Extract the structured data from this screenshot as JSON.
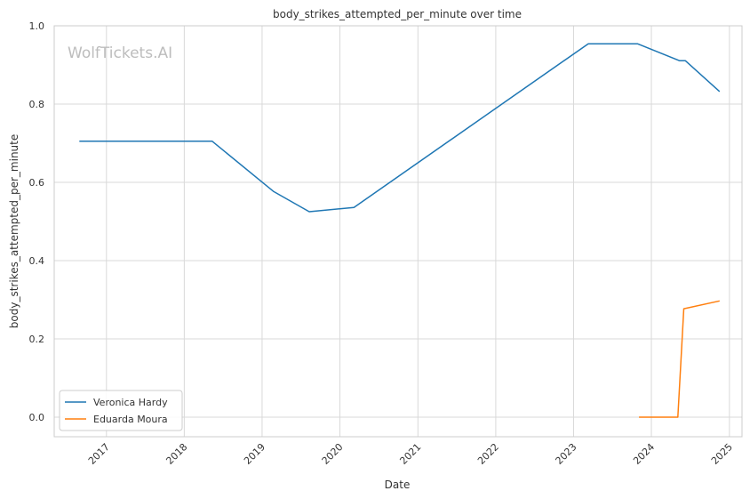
{
  "chart_data": {
    "type": "line",
    "title": "body_strikes_attempted_per_minute over time",
    "xlabel": "Date",
    "ylabel": "body_strikes_attempted_per_minute",
    "watermark": "WolfTickets.AI",
    "x_ticks": [
      "2017",
      "2018",
      "2019",
      "2020",
      "2021",
      "2022",
      "2023",
      "2024",
      "2025"
    ],
    "y_ticks": [
      "0.0",
      "0.2",
      "0.4",
      "0.6",
      "0.8",
      "1.0"
    ],
    "xlim": [
      "2016-05-01",
      "2025-03-01"
    ],
    "ylim": [
      -0.05,
      1.0
    ],
    "grid": true,
    "legend_position": "lower-left",
    "series": [
      {
        "name": "Veronica Hardy",
        "color": "#1f77b4",
        "points": [
          {
            "x": "2016-08-27",
            "y": 0.705
          },
          {
            "x": "2018-05-12",
            "y": 0.705
          },
          {
            "x": "2019-02-23",
            "y": 0.577
          },
          {
            "x": "2019-08-10",
            "y": 0.525
          },
          {
            "x": "2020-03-07",
            "y": 0.536
          },
          {
            "x": "2023-03-11",
            "y": 0.954
          },
          {
            "x": "2023-10-28",
            "y": 0.954
          },
          {
            "x": "2024-05-11",
            "y": 0.911
          },
          {
            "x": "2024-06-08",
            "y": 0.911
          },
          {
            "x": "2024-11-16",
            "y": 0.832
          }
        ]
      },
      {
        "name": "Eduarda Moura",
        "color": "#ff7f0e",
        "points": [
          {
            "x": "2023-11-04",
            "y": 0.0
          },
          {
            "x": "2024-05-04",
            "y": 0.0
          },
          {
            "x": "2024-06-01",
            "y": 0.277
          },
          {
            "x": "2024-11-16",
            "y": 0.297
          }
        ]
      }
    ]
  }
}
